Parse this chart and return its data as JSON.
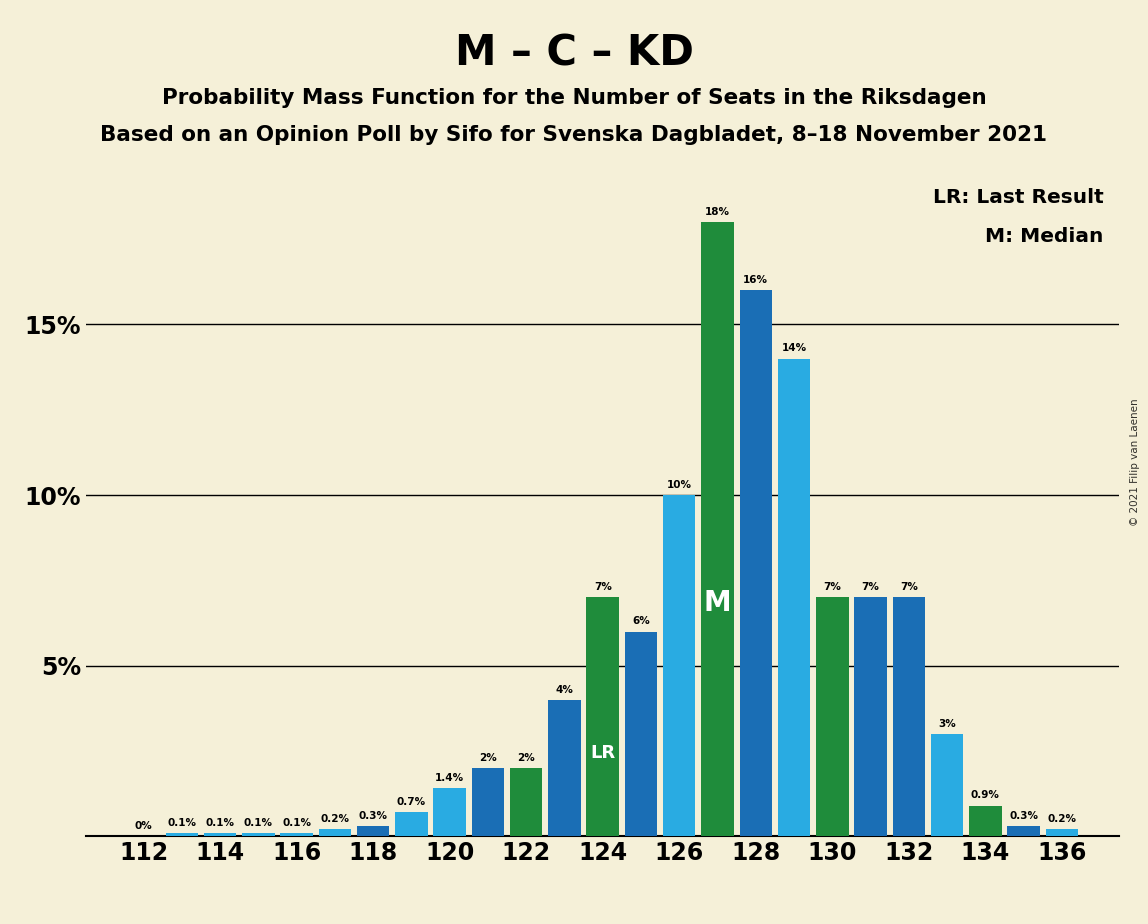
{
  "title": "M – C – KD",
  "subtitle1": "Probability Mass Function for the Number of Seats in the Riksdagen",
  "subtitle2": "Based on an Opinion Poll by Sifo for Svenska Dagbladet, 8–18 November 2021",
  "copyright": "© 2021 Filip van Laenen",
  "seats": [
    112,
    113,
    114,
    115,
    116,
    117,
    118,
    119,
    120,
    121,
    122,
    123,
    124,
    125,
    126,
    127,
    128,
    129,
    130,
    131,
    132,
    133,
    134,
    135,
    136
  ],
  "values": [
    0.0,
    0.1,
    0.1,
    0.1,
    0.1,
    0.2,
    0.3,
    0.7,
    1.4,
    2.0,
    2.0,
    4.0,
    7.0,
    6.0,
    10.0,
    18.0,
    16.0,
    14.0,
    7.0,
    7.0,
    7.0,
    3.0,
    0.9,
    0.3,
    0.2
  ],
  "colors": [
    "#29abe2",
    "#29abe2",
    "#29abe2",
    "#29abe2",
    "#29abe2",
    "#29abe2",
    "#1a6eb5",
    "#29abe2",
    "#29abe2",
    "#1a6eb5",
    "#1f8c3b",
    "#1a6eb5",
    "#1f8c3b",
    "#1a6eb5",
    "#29abe2",
    "#1f8c3b",
    "#1a6eb5",
    "#29abe2",
    "#1f8c3b",
    "#1a6eb5",
    "#1a6eb5",
    "#29abe2",
    "#1f8c3b",
    "#1a6eb5",
    "#29abe2"
  ],
  "LR_seat": 124,
  "median_seat": 127,
  "ylim": [
    0,
    19.5
  ],
  "yticks": [
    5,
    10,
    15
  ],
  "ytick_labels": [
    "5%",
    "10%",
    "15%"
  ],
  "background_color": "#f5f0d8",
  "legend_lr": "LR: Last Result",
  "legend_m": "M: Median",
  "zero_label_seats": [
    112,
    136
  ]
}
